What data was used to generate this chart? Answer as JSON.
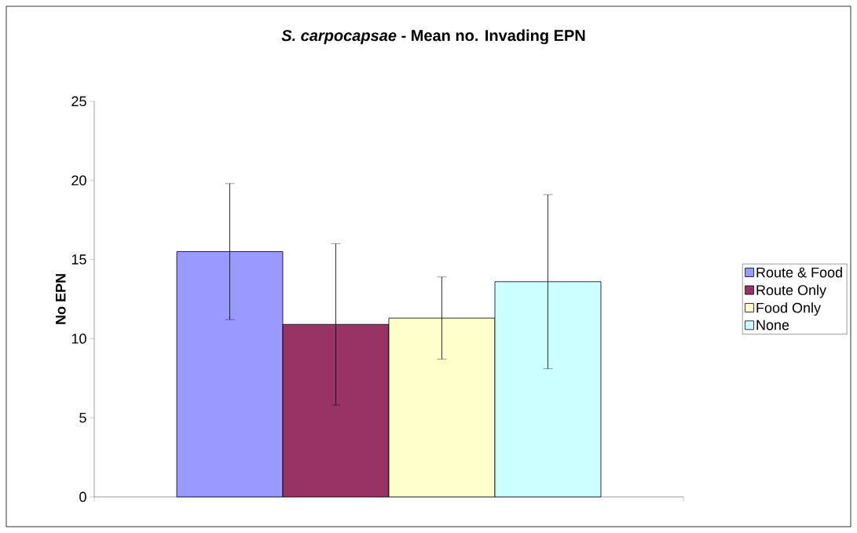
{
  "chart_data": {
    "type": "bar",
    "title": "*S. carpocapsae* - Mean no. Invading EPN",
    "ylabel": "No EPN",
    "categories": [
      null
    ],
    "series": [
      {
        "name": "Route & Food",
        "color": "#9999ff",
        "values": [
          15.5
        ],
        "errors": [
          4.3
        ]
      },
      {
        "name": "Route Only",
        "color": "#993366",
        "values": [
          10.9
        ],
        "errors": [
          5.1
        ]
      },
      {
        "name": "Food Only",
        "color": "#ffffcc",
        "values": [
          11.3
        ],
        "errors": [
          2.6
        ]
      },
      {
        "name": "None",
        "color": "#ccffff",
        "values": [
          13.6
        ],
        "errors": [
          5.5
        ]
      }
    ],
    "ylim": [
      0,
      25
    ],
    "yticks": [
      0,
      5,
      10,
      15,
      20,
      25
    ],
    "grid": false,
    "legend": "right"
  }
}
